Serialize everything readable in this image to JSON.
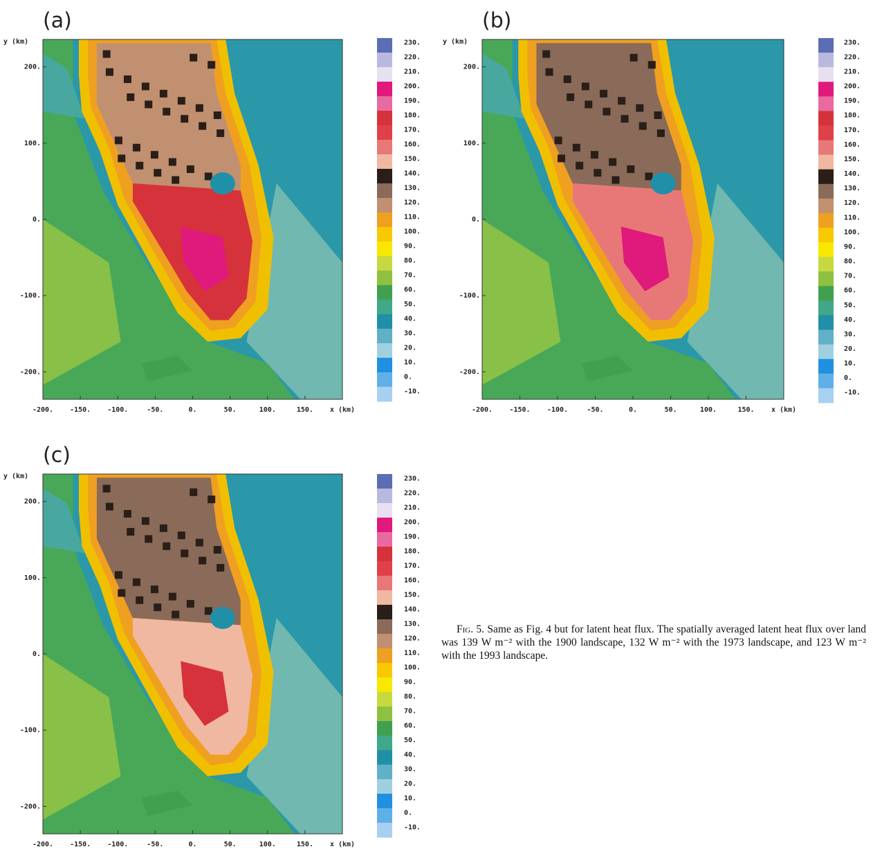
{
  "panels": [
    {
      "label": "(a)",
      "y_axis_label": "y (km)",
      "x_axis_label": "x (km)",
      "xticks": [
        "-200.",
        "-150.",
        "-100.",
        "-50.",
        "0.",
        "50.",
        "100.",
        "150."
      ],
      "yticks": [
        "200.",
        "100.",
        "0.",
        "-100.",
        "-200."
      ],
      "colorbar_labels": [
        "230.",
        "220.",
        "210.",
        "200.",
        "190.",
        "180.",
        "170.",
        "160.",
        "150.",
        "140.",
        "130.",
        "120.",
        "110.",
        "100.",
        "90.",
        "80.",
        "70.",
        "60.",
        "50.",
        "40.",
        "30.",
        "20.",
        "10.",
        "0.",
        "-10."
      ]
    },
    {
      "label": "(b)",
      "y_axis_label": "y (km)",
      "x_axis_label": "x (km)",
      "xticks": [
        "-200.",
        "-150.",
        "-100.",
        "-50.",
        "0.",
        "50.",
        "100.",
        "150."
      ],
      "yticks": [
        "200.",
        "100.",
        "0.",
        "-100.",
        "-200."
      ],
      "colorbar_labels": [
        "230.",
        "220.",
        "210.",
        "200.",
        "190.",
        "180.",
        "170.",
        "160.",
        "150.",
        "140.",
        "130.",
        "120.",
        "110.",
        "100.",
        "90.",
        "80.",
        "70.",
        "60.",
        "50.",
        "40.",
        "30.",
        "20.",
        "10.",
        "0.",
        "-10."
      ]
    },
    {
      "label": "(c)",
      "y_axis_label": "y (km)",
      "x_axis_label": "x (km)",
      "xticks": [
        "-200.",
        "-150.",
        "-100.",
        "-50.",
        "0.",
        "50.",
        "100.",
        "150."
      ],
      "yticks": [
        "200.",
        "100.",
        "0.",
        "-100.",
        "-200."
      ],
      "colorbar_labels": [
        "230.",
        "220.",
        "210.",
        "200.",
        "190.",
        "180.",
        "170.",
        "160.",
        "150.",
        "140.",
        "130.",
        "120.",
        "110.",
        "100.",
        "90.",
        "80.",
        "70.",
        "60.",
        "50.",
        "40.",
        "30.",
        "20.",
        "10.",
        "0.",
        "-10."
      ]
    }
  ],
  "caption": {
    "figure_label": "Fig. 5.",
    "text": "Same as Fig. 4 but for latent heat flux. The spatially averaged latent heat flux over land was 139 W m⁻² with the 1900 landscape, 132 W m⁻² with the 1973 landscape, and 123 W m⁻² with the 1993 landscape."
  }
}
